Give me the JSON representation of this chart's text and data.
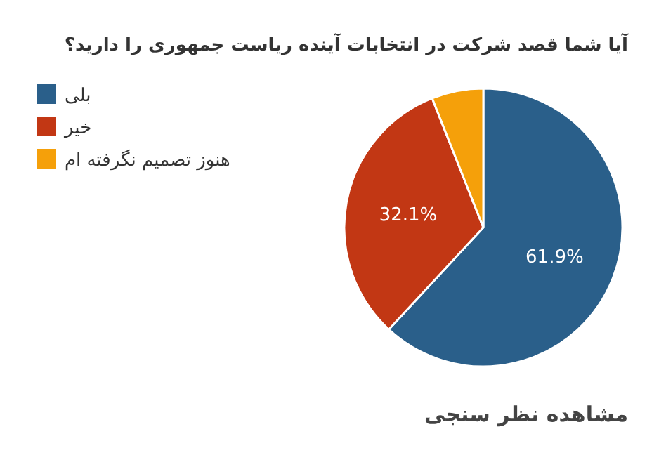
{
  "chart_data": {
    "type": "pie",
    "title": "آیا شما قصد شرکت در انتخابات آینده ریاست جمهوری را دارید؟",
    "categories": [
      "بلی",
      "خیر",
      "هنوز تصمیم نگرفته ام"
    ],
    "values": [
      61.9,
      32.1,
      6.0
    ],
    "colors": [
      "#2a5f8a",
      "#c23714",
      "#f5a00a"
    ],
    "value_labels": [
      "61.9%",
      "32.1%",
      null
    ],
    "legend": "top left",
    "annotations": [
      "مشاهده نظر سنجی"
    ]
  }
}
